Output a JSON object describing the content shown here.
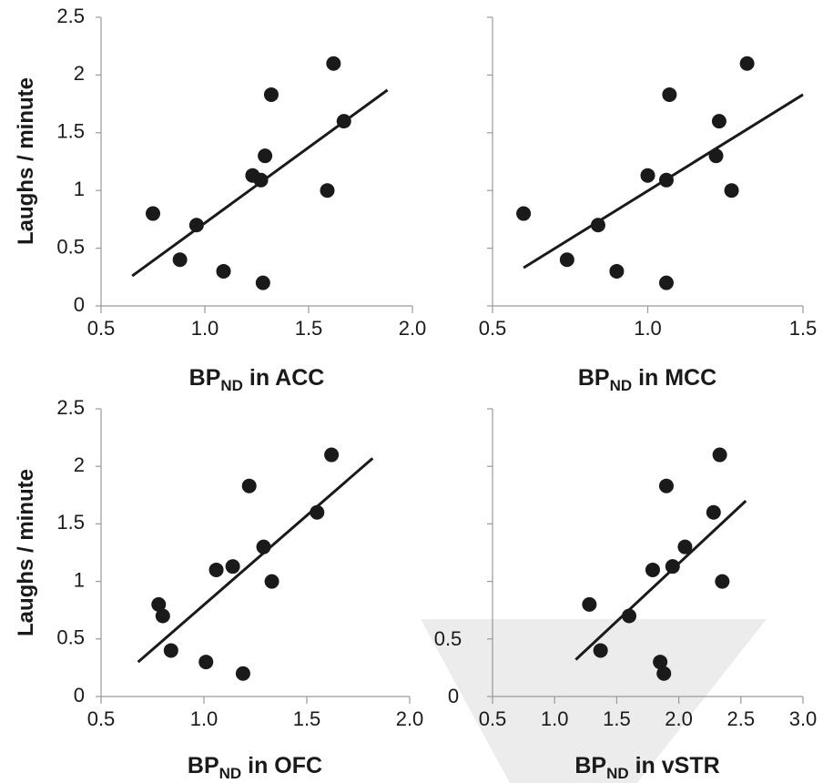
{
  "chart_data": [
    {
      "type": "scatter",
      "xlabel": "BP",
      "xlabel_sub": "ND",
      "xlabel_suffix": " in ACC",
      "ylabel": "Laughs / minute",
      "xlim": [
        0.5,
        2.0
      ],
      "ylim": [
        0,
        2.5
      ],
      "xticks": [
        "0.5",
        "1.0",
        "1.5",
        "2.0"
      ],
      "yticks": [
        "0",
        "0.5",
        "1",
        "1.5",
        "2",
        "2.5"
      ],
      "points": [
        {
          "x": 0.75,
          "y": 0.8
        },
        {
          "x": 0.88,
          "y": 0.4
        },
        {
          "x": 0.96,
          "y": 0.7
        },
        {
          "x": 1.09,
          "y": 0.3
        },
        {
          "x": 1.23,
          "y": 1.13
        },
        {
          "x": 1.27,
          "y": 1.09
        },
        {
          "x": 1.29,
          "y": 1.3
        },
        {
          "x": 1.28,
          "y": 0.2
        },
        {
          "x": 1.32,
          "y": 1.83
        },
        {
          "x": 1.59,
          "y": 1.0
        },
        {
          "x": 1.62,
          "y": 2.1
        },
        {
          "x": 1.67,
          "y": 1.6
        }
      ],
      "fit_line": [
        {
          "x": 0.65,
          "y": 0.26
        },
        {
          "x": 1.88,
          "y": 1.87
        }
      ]
    },
    {
      "type": "scatter",
      "xlabel": "BP",
      "xlabel_sub": "ND",
      "xlabel_suffix": " in MCC",
      "ylabel": "",
      "xlim": [
        0.5,
        1.5
      ],
      "ylim": [
        0,
        2.5
      ],
      "xticks": [
        "0.5",
        "1.0",
        "1.5"
      ],
      "yticks": [],
      "points": [
        {
          "x": 0.6,
          "y": 0.8
        },
        {
          "x": 0.74,
          "y": 0.4
        },
        {
          "x": 0.84,
          "y": 0.7
        },
        {
          "x": 0.9,
          "y": 0.3
        },
        {
          "x": 1.0,
          "y": 1.13
        },
        {
          "x": 1.06,
          "y": 1.09
        },
        {
          "x": 1.07,
          "y": 1.83
        },
        {
          "x": 1.06,
          "y": 0.2
        },
        {
          "x": 1.22,
          "y": 1.3
        },
        {
          "x": 1.23,
          "y": 1.6
        },
        {
          "x": 1.27,
          "y": 1.0
        },
        {
          "x": 1.32,
          "y": 2.1
        }
      ],
      "fit_line": [
        {
          "x": 0.6,
          "y": 0.33
        },
        {
          "x": 1.5,
          "y": 1.83
        }
      ]
    },
    {
      "type": "scatter",
      "xlabel": "BP",
      "xlabel_sub": "ND",
      "xlabel_suffix": " in OFC",
      "ylabel": "Laughs / minute",
      "xlim": [
        0.5,
        2.0
      ],
      "ylim": [
        0,
        2.5
      ],
      "xticks": [
        "0.5",
        "1.0",
        "1.5",
        "2.0"
      ],
      "yticks": [
        "0",
        "0.5",
        "1",
        "1.5",
        "2",
        "2.5"
      ],
      "points": [
        {
          "x": 0.78,
          "y": 0.8
        },
        {
          "x": 0.8,
          "y": 0.7
        },
        {
          "x": 0.84,
          "y": 0.4
        },
        {
          "x": 1.01,
          "y": 0.3
        },
        {
          "x": 1.06,
          "y": 1.1
        },
        {
          "x": 1.14,
          "y": 1.13
        },
        {
          "x": 1.19,
          "y": 0.2
        },
        {
          "x": 1.22,
          "y": 1.83
        },
        {
          "x": 1.29,
          "y": 1.3
        },
        {
          "x": 1.33,
          "y": 1.0
        },
        {
          "x": 1.55,
          "y": 1.6
        },
        {
          "x": 1.62,
          "y": 2.1
        }
      ],
      "fit_line": [
        {
          "x": 0.68,
          "y": 0.3
        },
        {
          "x": 1.82,
          "y": 2.07
        }
      ]
    },
    {
      "type": "scatter",
      "xlabel": "BP",
      "xlabel_sub": "ND",
      "xlabel_suffix": " in vSTR",
      "ylabel": "",
      "xlim": [
        0.5,
        3.0
      ],
      "ylim": [
        0,
        2.5
      ],
      "xticks": [
        "0.5",
        "1.0",
        "1.5",
        "2.0",
        "2.5",
        "3.0"
      ],
      "yticks": [],
      "points": [
        {
          "x": 1.28,
          "y": 0.8
        },
        {
          "x": 1.37,
          "y": 0.4
        },
        {
          "x": 1.6,
          "y": 0.7
        },
        {
          "x": 1.79,
          "y": 1.1
        },
        {
          "x": 1.85,
          "y": 0.3
        },
        {
          "x": 1.88,
          "y": 0.2
        },
        {
          "x": 1.9,
          "y": 1.83
        },
        {
          "x": 1.95,
          "y": 1.13
        },
        {
          "x": 2.05,
          "y": 1.3
        },
        {
          "x": 2.28,
          "y": 1.6
        },
        {
          "x": 2.33,
          "y": 2.1
        },
        {
          "x": 2.35,
          "y": 1.0
        }
      ],
      "fit_line": [
        {
          "x": 1.17,
          "y": 0.32
        },
        {
          "x": 2.54,
          "y": 1.7
        }
      ]
    }
  ],
  "watermark": {
    "tick_labels": [
      "0.5",
      "0"
    ]
  }
}
